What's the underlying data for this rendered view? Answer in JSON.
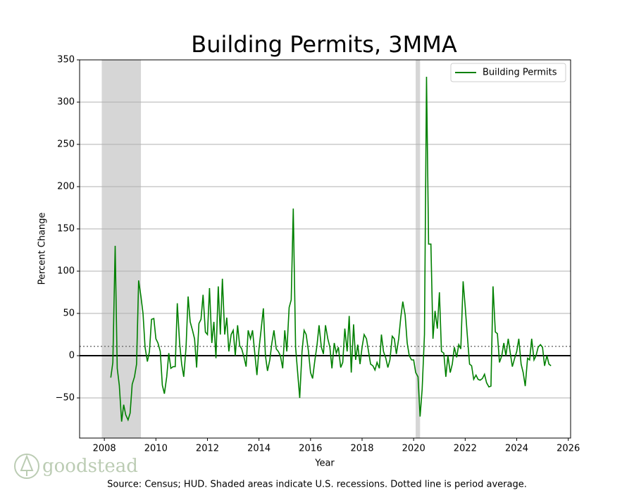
{
  "chart_data": {
    "type": "line",
    "title": "Building Permits, 3MMA",
    "x_label": "Year",
    "y_label": "Percent Change",
    "source": "Source: Census; HUD. Shaded areas indicate U.S. recessions. Dotted line is period average.",
    "logo": "goodstead",
    "legend_position": "upper right",
    "grid": true,
    "xlim": [
      2007.04,
      2026.09
    ],
    "ylim": [
      -97.5,
      350
    ],
    "xticks": [
      2008,
      2010,
      2012,
      2014,
      2016,
      2018,
      2020,
      2022,
      2024,
      2026
    ],
    "yticks": [
      {
        "value": -50,
        "label": "−50"
      },
      0,
      50,
      100,
      150,
      200,
      250,
      300,
      350
    ],
    "shaded_regions": [
      [
        2007.9,
        2009.42
      ],
      [
        2020.08,
        2020.25
      ]
    ],
    "reference_line": 11,
    "x": [
      2008.25,
      2008.33,
      2008.42,
      2008.5,
      2008.58,
      2008.67,
      2008.75,
      2008.83,
      2008.92,
      2009.0,
      2009.08,
      2009.17,
      2009.25,
      2009.33,
      2009.42,
      2009.5,
      2009.58,
      2009.67,
      2009.75,
      2009.83,
      2009.92,
      2010.0,
      2010.08,
      2010.17,
      2010.25,
      2010.33,
      2010.42,
      2010.5,
      2010.58,
      2010.67,
      2010.75,
      2010.83,
      2010.92,
      2011.0,
      2011.08,
      2011.17,
      2011.25,
      2011.33,
      2011.42,
      2011.5,
      2011.58,
      2011.67,
      2011.75,
      2011.83,
      2011.92,
      2012.0,
      2012.08,
      2012.17,
      2012.25,
      2012.33,
      2012.42,
      2012.5,
      2012.58,
      2012.67,
      2012.75,
      2012.83,
      2012.92,
      2013.0,
      2013.08,
      2013.17,
      2013.25,
      2013.33,
      2013.42,
      2013.5,
      2013.58,
      2013.67,
      2013.75,
      2013.83,
      2013.92,
      2014.0,
      2014.08,
      2014.17,
      2014.25,
      2014.33,
      2014.42,
      2014.5,
      2014.58,
      2014.67,
      2014.75,
      2014.83,
      2014.92,
      2015.0,
      2015.08,
      2015.17,
      2015.25,
      2015.33,
      2015.42,
      2015.5,
      2015.58,
      2015.67,
      2015.75,
      2015.83,
      2015.92,
      2016.0,
      2016.08,
      2016.17,
      2016.25,
      2016.33,
      2016.42,
      2016.5,
      2016.58,
      2016.67,
      2016.75,
      2016.83,
      2016.92,
      2017.0,
      2017.08,
      2017.17,
      2017.25,
      2017.33,
      2017.42,
      2017.5,
      2017.58,
      2017.67,
      2017.75,
      2017.83,
      2017.92,
      2018.0,
      2018.08,
      2018.17,
      2018.25,
      2018.33,
      2018.42,
      2018.5,
      2018.58,
      2018.67,
      2018.75,
      2018.83,
      2018.92,
      2019.0,
      2019.08,
      2019.17,
      2019.25,
      2019.33,
      2019.42,
      2019.5,
      2019.58,
      2019.67,
      2019.75,
      2019.83,
      2019.92,
      2020.0,
      2020.08,
      2020.17,
      2020.25,
      2020.33,
      2020.42,
      2020.5,
      2020.58,
      2020.67,
      2020.75,
      2020.83,
      2020.92,
      2021.0,
      2021.08,
      2021.17,
      2021.25,
      2021.33,
      2021.42,
      2021.5,
      2021.58,
      2021.67,
      2021.75,
      2021.83,
      2021.92,
      2022.0,
      2022.08,
      2022.17,
      2022.25,
      2022.33,
      2022.42,
      2022.5,
      2022.58,
      2022.67,
      2022.75,
      2022.83,
      2022.92,
      2023.0,
      2023.08,
      2023.17,
      2023.25,
      2023.33,
      2023.42,
      2023.5,
      2023.58,
      2023.67,
      2023.75,
      2023.83,
      2023.92,
      2024.0,
      2024.08,
      2024.17,
      2024.25,
      2024.33,
      2024.42,
      2024.5,
      2024.58,
      2024.67,
      2024.75,
      2024.83,
      2024.92,
      2025.0,
      2025.08,
      2025.17,
      2025.25,
      2025.33
    ],
    "series": [
      {
        "name": "Building Permits",
        "color": "#008000",
        "values": [
          -26,
          -8,
          130,
          -15,
          -35,
          -78,
          -58,
          -70,
          -76,
          -68,
          -34,
          -25,
          -10,
          89,
          70,
          50,
          10,
          -7,
          5,
          43,
          44,
          20,
          15,
          5,
          -35,
          -45,
          -25,
          3,
          -15,
          -13,
          -13,
          62,
          15,
          -10,
          -25,
          10,
          70,
          40,
          30,
          20,
          -14,
          38,
          43,
          72,
          28,
          25,
          80,
          15,
          40,
          -3,
          82,
          25,
          91,
          25,
          45,
          5,
          25,
          30,
          0,
          36,
          12,
          8,
          -2,
          -13,
          30,
          20,
          30,
          5,
          -23,
          8,
          30,
          56,
          0,
          -18,
          -5,
          15,
          30,
          8,
          5,
          0,
          -15,
          30,
          5,
          57,
          66,
          174,
          10,
          -20,
          -50,
          5,
          30,
          25,
          5,
          -20,
          -27,
          -5,
          12,
          36,
          10,
          2,
          36,
          20,
          10,
          -15,
          15,
          3,
          10,
          -14,
          -8,
          32,
          5,
          47,
          -20,
          37,
          -5,
          13,
          -10,
          10,
          25,
          20,
          5,
          -10,
          -12,
          -17,
          -8,
          -15,
          25,
          5,
          -3,
          -14,
          -5,
          23,
          20,
          2,
          20,
          45,
          64,
          48,
          15,
          0,
          -5,
          -5,
          -20,
          -25,
          -72,
          -40,
          25,
          330,
          132,
          132,
          20,
          53,
          32,
          75,
          5,
          3,
          -25,
          0,
          -20,
          -10,
          10,
          -2,
          13,
          8,
          88,
          58,
          25,
          -10,
          -12,
          -28,
          -23,
          -28,
          -29,
          -27,
          -22,
          -32,
          -37,
          -36,
          82,
          28,
          26,
          -8,
          0,
          15,
          0,
          20,
          3,
          -13,
          -3,
          5,
          20,
          -10,
          -20,
          -36,
          -3,
          -5,
          20,
          -5,
          0,
          10,
          13,
          10,
          -12,
          0,
          -10,
          -12
        ]
      }
    ]
  }
}
